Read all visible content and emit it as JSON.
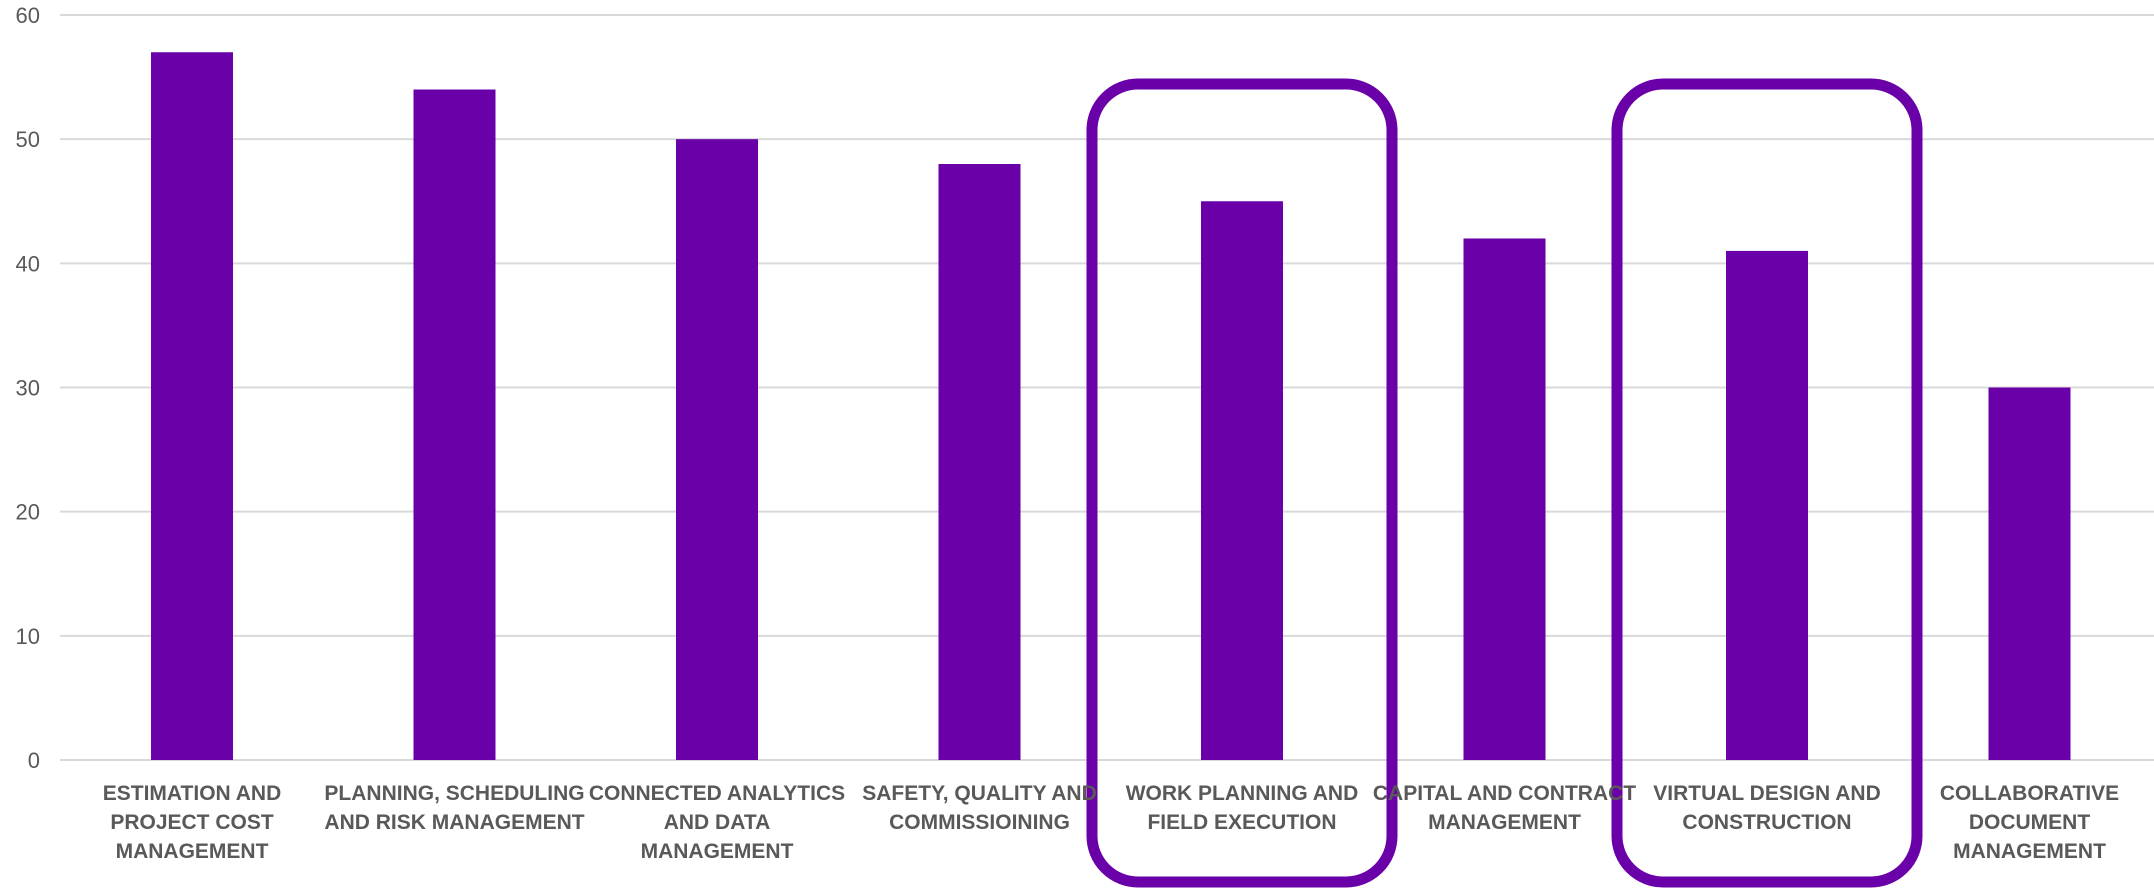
{
  "chart_data": {
    "type": "bar",
    "categories": [
      [
        "ESTIMATION AND",
        "PROJECT COST",
        "MANAGEMENT"
      ],
      [
        "PLANNING, SCHEDULING",
        "AND RISK MANAGEMENT"
      ],
      [
        "CONNECTED ANALYTICS",
        "AND DATA",
        "MANAGEMENT"
      ],
      [
        "SAFETY, QUALITY AND",
        "COMMISSIOINING"
      ],
      [
        "WORK PLANNING AND",
        "FIELD EXECUTION"
      ],
      [
        "CAPITAL AND CONTRACT",
        "MANAGEMENT"
      ],
      [
        "VIRTUAL DESIGN AND",
        "CONSTRUCTION"
      ],
      [
        "COLLABORATIVE",
        "DOCUMENT",
        "MANAGEMENT"
      ]
    ],
    "values": [
      57,
      54,
      50,
      48,
      45,
      42,
      41,
      30
    ],
    "ylim": [
      0,
      60
    ],
    "yticks": [
      0,
      10,
      20,
      30,
      40,
      50,
      60
    ],
    "grid": true,
    "highlighted_categories": [
      4,
      6
    ],
    "colors": {
      "bar": "#6a00a8",
      "highlight": "#6a00a8",
      "grid": "#d9d9d9",
      "text": "#595959"
    }
  }
}
